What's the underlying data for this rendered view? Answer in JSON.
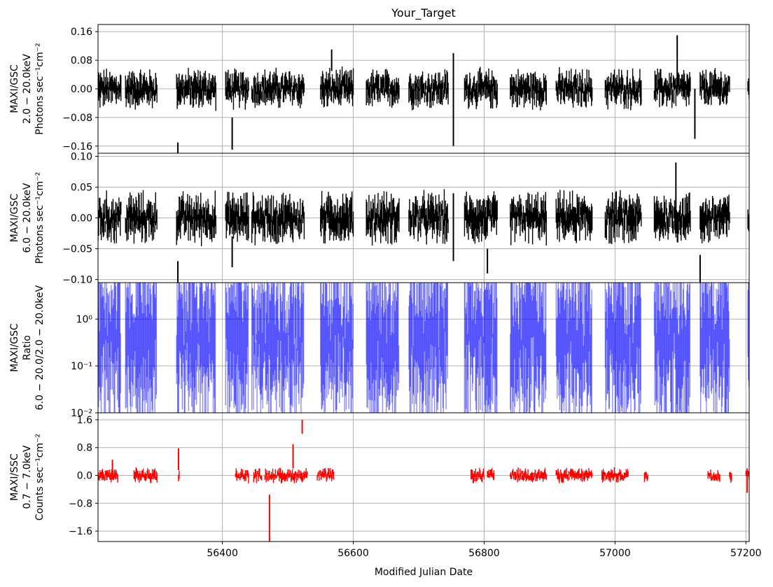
{
  "title": "Your_Target",
  "xlabel": "Modified Julian Date",
  "x_ticks": [
    56400,
    56600,
    56800,
    57000,
    57200
  ],
  "x_range": [
    56210,
    57205
  ],
  "chart_data": [
    {
      "type": "line",
      "subplot": "top",
      "series_color": "#000000",
      "ylabel": [
        "MAXI/GSC",
        "2.0 − 20.0keV",
        "Photons sec⁻¹cm⁻²"
      ],
      "ylim": [
        -0.18,
        0.18
      ],
      "y_ticks": [
        {
          "v": 0.16,
          "label": "0.16"
        },
        {
          "v": 0.08,
          "label": "0.08"
        },
        {
          "v": 0.0,
          "label": "0.00"
        },
        {
          "v": -0.08,
          "label": "−0.08"
        },
        {
          "v": -0.16,
          "label": "−0.16"
        }
      ],
      "observing_segments": [
        [
          56210,
          56245
        ],
        [
          56252,
          56300
        ],
        [
          56330,
          56390
        ],
        [
          56405,
          56440
        ],
        [
          56445,
          56525
        ],
        [
          56550,
          56600
        ],
        [
          56620,
          56670
        ],
        [
          56685,
          56745
        ],
        [
          56770,
          56820
        ],
        [
          56840,
          56895
        ],
        [
          56910,
          56965
        ],
        [
          56985,
          57040
        ],
        [
          57060,
          57115
        ],
        [
          57130,
          57175
        ],
        [
          57203,
          57205
        ]
      ],
      "typical_range": [
        -0.04,
        0.04
      ],
      "outliers": [
        {
          "x": 56332,
          "y_low": -0.18,
          "y_high": -0.15
        },
        {
          "x": 56415,
          "y_low": -0.17,
          "y_high": -0.08
        },
        {
          "x": 56567,
          "y_low": 0.05,
          "y_high": 0.11
        },
        {
          "x": 56753,
          "y_low": -0.16,
          "y_high": 0.1
        },
        {
          "x": 57095,
          "y_low": 0.0,
          "y_high": 0.15
        },
        {
          "x": 57122,
          "y_low": -0.14,
          "y_high": 0.0
        }
      ]
    },
    {
      "type": "line",
      "subplot": "second",
      "series_color": "#000000",
      "ylabel": [
        "MAXI/GSC",
        "6.0 − 20.0keV",
        "Photons sec⁻¹cm⁻²"
      ],
      "ylim": [
        -0.105,
        0.105
      ],
      "y_ticks": [
        {
          "v": 0.1,
          "label": "0.10"
        },
        {
          "v": 0.05,
          "label": "0.05"
        },
        {
          "v": 0.0,
          "label": "0.00"
        },
        {
          "v": -0.05,
          "label": "−0.05"
        },
        {
          "v": -0.1,
          "label": "−0.10"
        }
      ],
      "observing_segments": [
        [
          56210,
          56245
        ],
        [
          56252,
          56300
        ],
        [
          56330,
          56390
        ],
        [
          56405,
          56440
        ],
        [
          56445,
          56525
        ],
        [
          56550,
          56600
        ],
        [
          56620,
          56670
        ],
        [
          56685,
          56745
        ],
        [
          56770,
          56820
        ],
        [
          56840,
          56895
        ],
        [
          56910,
          56965
        ],
        [
          56985,
          57040
        ],
        [
          57060,
          57115
        ],
        [
          57130,
          57175
        ],
        [
          57203,
          57205
        ]
      ],
      "typical_range": [
        -0.03,
        0.03
      ],
      "outliers": [
        {
          "x": 56332,
          "y_low": -0.105,
          "y_high": -0.07
        },
        {
          "x": 56415,
          "y_low": -0.08,
          "y_high": -0.03
        },
        {
          "x": 56753,
          "y_low": -0.07,
          "y_high": 0.04
        },
        {
          "x": 56805,
          "y_low": -0.09,
          "y_high": -0.05
        },
        {
          "x": 57093,
          "y_low": 0.0,
          "y_high": 0.09
        },
        {
          "x": 57130,
          "y_low": -0.105,
          "y_high": -0.06
        }
      ]
    },
    {
      "type": "line",
      "subplot": "ratio",
      "series_color": "#0000ff",
      "ylabel": [
        "MAXI/GSC",
        "Ratio",
        "6.0 − 20.0/2.0 − 20.0keV"
      ],
      "yscale": "log",
      "ylim": [
        0.01,
        6
      ],
      "y_ticks": [
        {
          "v": 1,
          "label": "10⁰"
        },
        {
          "v": 0.1,
          "label": "10⁻¹"
        },
        {
          "v": 0.01,
          "label": "10⁻²"
        }
      ],
      "observing_segments": [
        [
          56210,
          56245
        ],
        [
          56252,
          56300
        ],
        [
          56330,
          56390
        ],
        [
          56405,
          56440
        ],
        [
          56445,
          56525
        ],
        [
          56550,
          56600
        ],
        [
          56620,
          56670
        ],
        [
          56685,
          56745
        ],
        [
          56770,
          56820
        ],
        [
          56840,
          56895
        ],
        [
          56910,
          56965
        ],
        [
          56985,
          57040
        ],
        [
          57060,
          57115
        ],
        [
          57130,
          57175
        ],
        [
          57203,
          57205
        ]
      ],
      "typical_range": [
        0.1,
        3
      ]
    },
    {
      "type": "line",
      "subplot": "bottom",
      "series_color": "#ff0000",
      "ylabel": [
        "MAXI/SSC",
        "0.7 − 7.0keV",
        "Counts sec⁻¹cm⁻²"
      ],
      "ylim": [
        -1.9,
        1.8
      ],
      "y_ticks": [
        {
          "v": 1.6,
          "label": "1.6"
        },
        {
          "v": 0.8,
          "label": "0.8"
        },
        {
          "v": 0.0,
          "label": "0.0"
        },
        {
          "v": -0.8,
          "label": "−0.8"
        },
        {
          "v": -1.6,
          "label": "−1.6"
        }
      ],
      "observing_segments": [
        [
          56210,
          56240
        ],
        [
          56265,
          56300
        ],
        [
          56333,
          56334
        ],
        [
          56420,
          56440
        ],
        [
          56448,
          56460
        ],
        [
          56465,
          56530
        ],
        [
          56545,
          56570
        ],
        [
          56780,
          56800
        ],
        [
          56805,
          56815
        ],
        [
          56840,
          56895
        ],
        [
          56910,
          56965
        ],
        [
          56980,
          57020
        ],
        [
          57045,
          57050
        ],
        [
          57142,
          57160
        ],
        [
          57175,
          57178
        ],
        [
          57200,
          57205
        ]
      ],
      "typical_range": [
        -0.15,
        0.15
      ],
      "outliers": [
        {
          "x": 56232,
          "y_low": 0.0,
          "y_high": 0.45
        },
        {
          "x": 56333,
          "y_low": 0.15,
          "y_high": 0.78
        },
        {
          "x": 56472,
          "y_low": -1.9,
          "y_high": -0.55
        },
        {
          "x": 56508,
          "y_low": 0.2,
          "y_high": 0.9
        },
        {
          "x": 56522,
          "y_low": 1.2,
          "y_high": 1.6
        },
        {
          "x": 57202,
          "y_low": -0.5,
          "y_high": 0.2
        }
      ]
    }
  ]
}
